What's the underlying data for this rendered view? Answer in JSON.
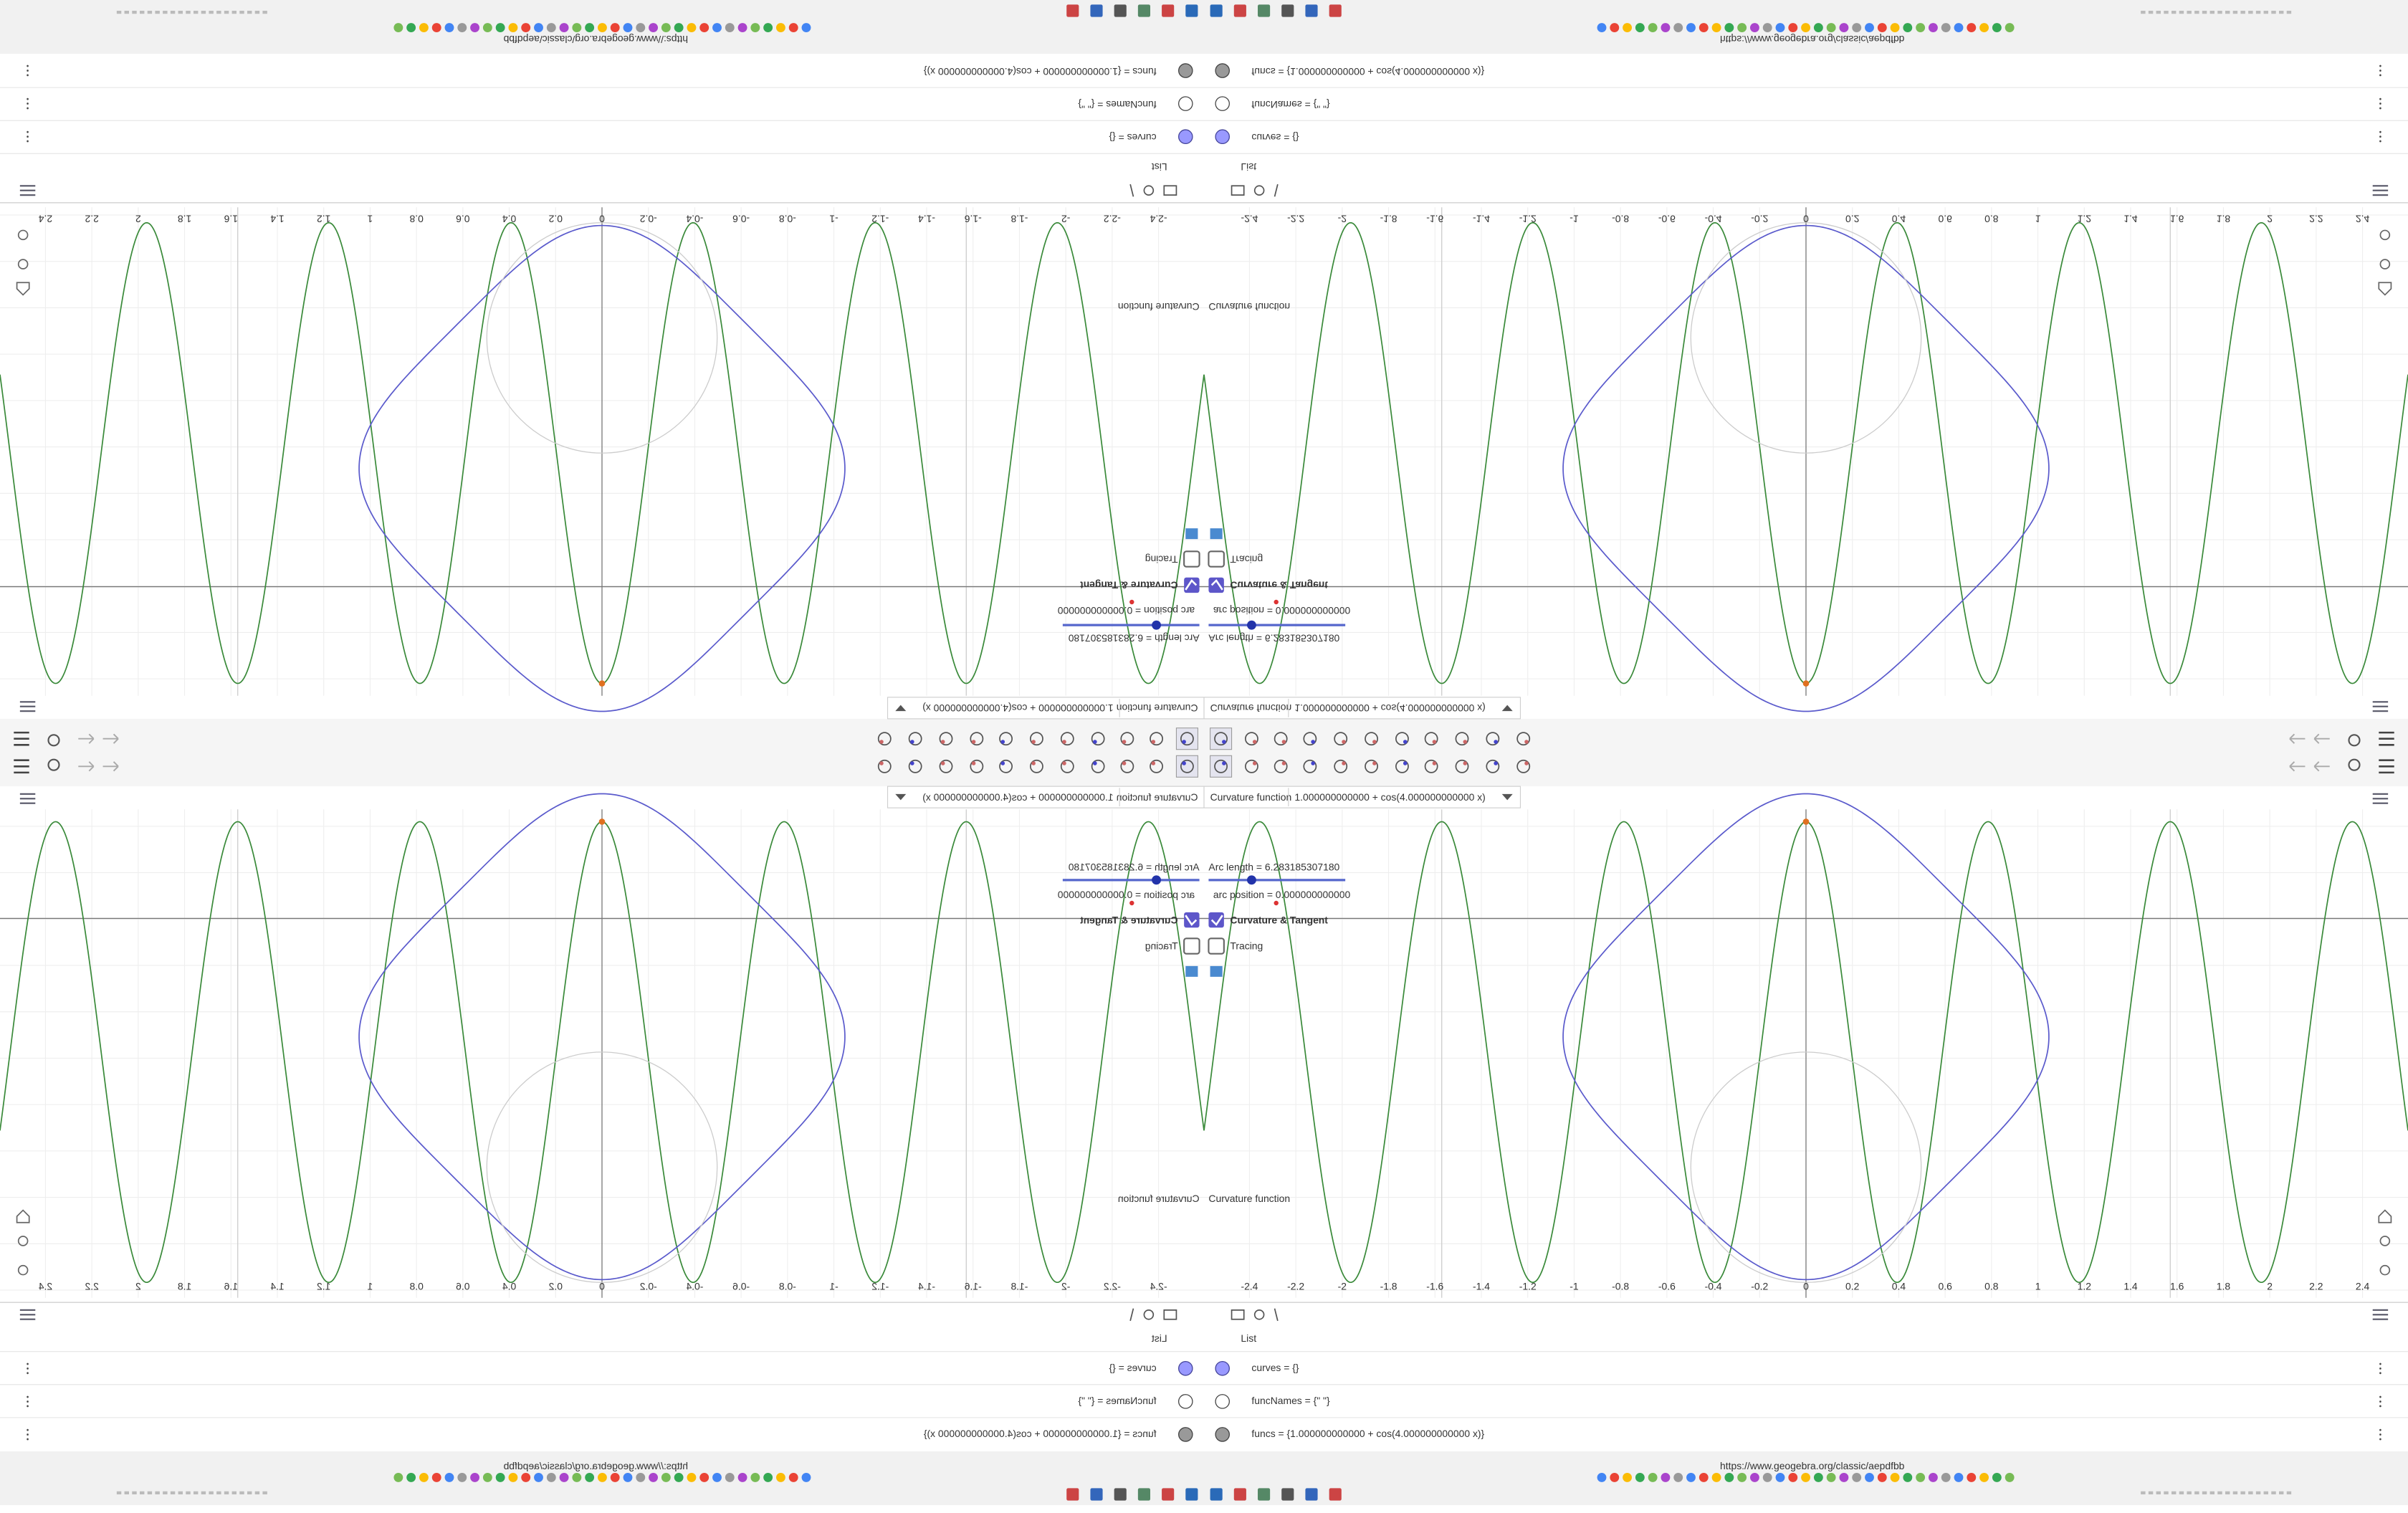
{
  "input_bar": {
    "label": "Curvature function",
    "expression": "1.000000000000 + cos(4.000000000000 x)"
  },
  "graphics": {
    "x_tick_labels": [
      "-2.4",
      "-2.2",
      "-2",
      "-1.8",
      "-1.6",
      "-1.4",
      "-1.2",
      "-1",
      "-0.8",
      "-0.6",
      "-0.4",
      "-0.2",
      "0",
      "0.2",
      "0.4",
      "0.6",
      "0.8",
      "1",
      "1.2",
      "1.4",
      "1.6",
      "1.8",
      "2",
      "2.2",
      "2.4"
    ],
    "arc_length": "Arc length = 6.283185307180",
    "arc_position": "arc position = 0.000000000000",
    "checkbox_curvature": "Curvature & Tangent",
    "checkbox_tracing": "Tracing",
    "curve_label": "Curvature function"
  },
  "algebra": {
    "header": "List",
    "rows": [
      "curves = {}",
      "funcNames = {\"  \"}",
      "funcs = {1.000000000000 + cos(4.000000000000 x)}"
    ]
  },
  "browser": {
    "url": "https://www.geogebra.org/classic/aepdfbb"
  }
}
